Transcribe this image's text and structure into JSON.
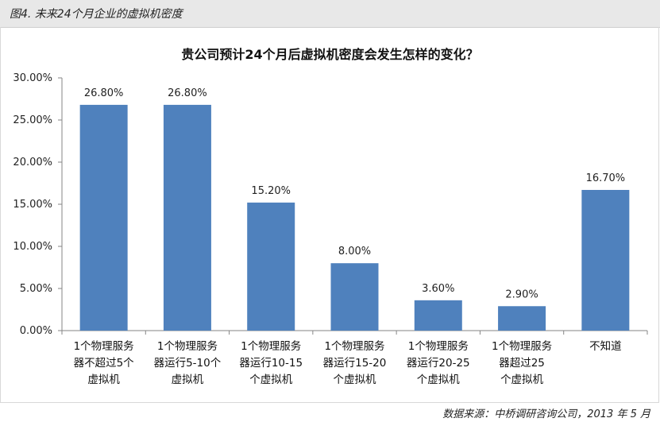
{
  "caption": "图4. 未来24个月企业的虚拟机密度",
  "source": "数据来源：中桥调研咨询公司，2013 年 5 月",
  "chart_data": {
    "type": "bar",
    "title": "贵公司预计24个月后虚拟机密度会发生怎样的变化？",
    "categories": [
      [
        "1个物理服务",
        "器不超过5个",
        "虚拟机"
      ],
      [
        "1个物理服务",
        "器运行5-10个",
        "虚拟机"
      ],
      [
        "1个物理服务",
        "器运行10-15",
        "个虚拟机"
      ],
      [
        "1个物理服务",
        "器运行15-20",
        "个虚拟机"
      ],
      [
        "1个物理服务",
        "器运行20-25",
        "个虚拟机"
      ],
      [
        "1个物理服务",
        "器超过25",
        "个虚拟机"
      ],
      [
        "不知道"
      ]
    ],
    "values": [
      26.8,
      26.8,
      15.2,
      8.0,
      3.6,
      2.9,
      16.7
    ],
    "data_labels": [
      "26.80%",
      "26.80%",
      "15.20%",
      "8.00%",
      "3.60%",
      "2.90%",
      "16.70%"
    ],
    "yticks": [
      "0.00%",
      "5.00%",
      "10.00%",
      "15.00%",
      "20.00%",
      "25.00%",
      "30.00%"
    ],
    "ylim": [
      0,
      30
    ],
    "bar_color": "#4f81bd",
    "grid": false,
    "legend": "none"
  }
}
